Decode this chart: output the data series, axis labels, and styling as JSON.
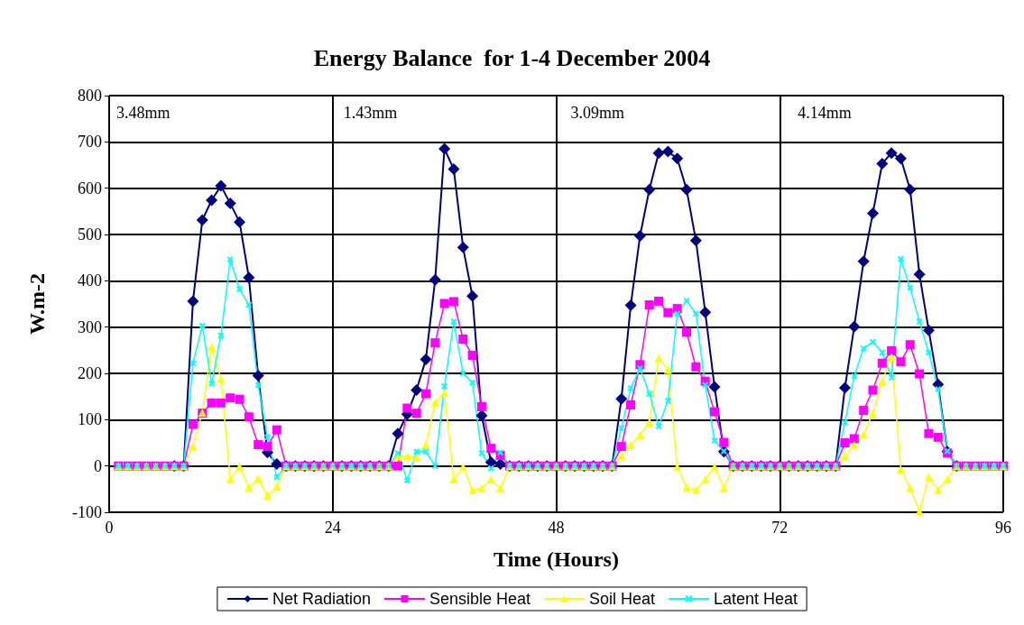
{
  "chart_data": {
    "type": "line",
    "title": "Energy Balance  for 1-4 December 2004",
    "xlabel": "Time (Hours)",
    "ylabel": "W.m-2",
    "annotations": [
      "3.48mm",
      "1.43mm",
      "3.09mm",
      "4.14mm"
    ],
    "x": [
      1,
      2,
      3,
      4,
      5,
      6,
      7,
      8,
      9,
      10,
      11,
      12,
      13,
      14,
      15,
      16,
      17,
      18,
      19,
      20,
      21,
      22,
      23,
      24,
      25,
      26,
      27,
      28,
      29,
      30,
      31,
      32,
      33,
      34,
      35,
      36,
      37,
      38,
      39,
      40,
      41,
      42,
      43,
      44,
      45,
      46,
      47,
      48,
      49,
      50,
      51,
      52,
      53,
      54,
      55,
      56,
      57,
      58,
      59,
      60,
      61,
      62,
      63,
      64,
      65,
      66,
      67,
      68,
      69,
      70,
      71,
      72,
      73,
      74,
      75,
      76,
      77,
      78,
      79,
      80,
      81,
      82,
      83,
      84,
      85,
      86,
      87,
      88,
      89,
      90,
      91,
      92,
      93,
      94,
      95,
      96
    ],
    "series": [
      {
        "name": "Net Radiation",
        "color": "#000080",
        "marker": "diamond",
        "values": [
          null,
          null,
          null,
          null,
          null,
          null,
          0,
          0,
          356,
          531,
          574,
          605,
          567,
          527,
          407,
          195,
          29,
          4,
          0,
          0,
          0,
          0,
          0,
          0,
          0,
          0,
          0,
          0,
          0,
          0,
          70,
          112,
          164,
          230,
          402,
          685,
          641,
          472,
          367,
          109,
          8,
          4,
          0,
          0,
          0,
          0,
          0,
          0,
          0,
          0,
          0,
          0,
          0,
          0,
          145,
          347,
          497,
          597,
          676,
          679,
          664,
          597,
          487,
          332,
          171,
          31,
          0,
          0,
          0,
          0,
          0,
          0,
          0,
          0,
          0,
          0,
          0,
          0,
          169,
          301,
          442,
          546,
          653,
          676,
          664,
          597,
          414,
          293,
          176,
          31,
          0,
          null,
          null,
          null,
          null,
          null
        ]
      },
      {
        "name": "Sensible Heat",
        "color": "#ff00ff",
        "marker": "square",
        "values": [
          0,
          0,
          0,
          0,
          0,
          0,
          0,
          0,
          90,
          114,
          136,
          136,
          147,
          144,
          106,
          46,
          42,
          78,
          0,
          0,
          0,
          0,
          0,
          0,
          0,
          0,
          0,
          0,
          0,
          0,
          0,
          125,
          114,
          156,
          266,
          351,
          355,
          274,
          239,
          128,
          38,
          23,
          0,
          0,
          0,
          0,
          0,
          0,
          0,
          0,
          0,
          0,
          0,
          0,
          42,
          132,
          219,
          348,
          356,
          331,
          340,
          289,
          214,
          183,
          117,
          51,
          0,
          0,
          0,
          0,
          0,
          0,
          0,
          0,
          0,
          0,
          0,
          0,
          50,
          59,
          120,
          164,
          222,
          249,
          225,
          262,
          199,
          70,
          62,
          28,
          0,
          0,
          0,
          0,
          0,
          0
        ]
      },
      {
        "name": "Soil Heat",
        "color": "#ffff00",
        "marker": "triangle",
        "values": [
          0,
          0,
          0,
          0,
          0,
          0,
          0,
          0,
          42,
          115,
          257,
          188,
          -29,
          -1,
          -46,
          -27,
          -65,
          -45,
          0,
          0,
          0,
          0,
          0,
          0,
          0,
          0,
          0,
          0,
          0,
          0,
          21,
          21,
          18,
          45,
          137,
          158,
          -29,
          -2,
          -52,
          -48,
          -29,
          -49,
          0,
          0,
          0,
          0,
          0,
          0,
          0,
          0,
          0,
          0,
          0,
          0,
          21,
          45,
          67,
          94,
          233,
          208,
          -2,
          -46,
          -52,
          -29,
          -2,
          -48,
          0,
          0,
          0,
          0,
          0,
          0,
          0,
          0,
          0,
          0,
          0,
          0,
          21,
          45,
          68,
          114,
          183,
          235,
          -8,
          -48,
          -98,
          -24,
          -52,
          -29,
          0,
          0,
          0,
          0,
          0,
          0
        ]
      },
      {
        "name": "Latent Heat",
        "color": "#00ffff",
        "marker": "cross",
        "values": [
          0,
          0,
          0,
          0,
          0,
          0,
          0,
          0,
          222,
          303,
          178,
          282,
          446,
          382,
          348,
          175,
          62,
          -24,
          0,
          0,
          0,
          0,
          0,
          0,
          0,
          0,
          0,
          0,
          0,
          0,
          28,
          -31,
          31,
          31,
          0,
          172,
          312,
          200,
          180,
          28,
          -5,
          29,
          0,
          0,
          0,
          0,
          0,
          0,
          0,
          0,
          0,
          0,
          0,
          0,
          82,
          168,
          211,
          156,
          86,
          141,
          329,
          357,
          329,
          175,
          55,
          32,
          0,
          0,
          0,
          0,
          0,
          0,
          0,
          0,
          0,
          0,
          0,
          0,
          94,
          194,
          254,
          268,
          245,
          191,
          447,
          385,
          312,
          245,
          166,
          32,
          0,
          0,
          0,
          0,
          0,
          0
        ]
      }
    ],
    "xlim": [
      0,
      96
    ],
    "xticks": [
      0,
      24,
      48,
      72,
      96
    ],
    "ylim": [
      -100,
      800
    ],
    "yticks": [
      -100,
      0,
      100,
      200,
      300,
      400,
      500,
      600,
      700,
      800
    ],
    "grid": true,
    "legend": "bottom",
    "line_style": "solid"
  }
}
